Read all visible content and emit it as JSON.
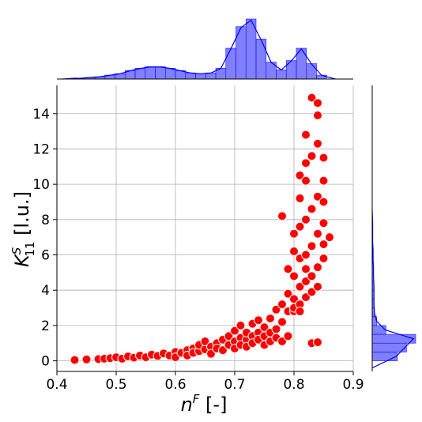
{
  "chart_data": {
    "type": "scatter",
    "title": "",
    "xlabel": "n",
    "xlabel_sup": "F",
    "xlabel_unit": " [-]",
    "ylabel": "K",
    "ylabel_sup": "S",
    "ylabel_sub": "11",
    "ylabel_unit": " [l.u.]",
    "xlim": [
      0.4,
      0.9
    ],
    "ylim": [
      -0.6,
      15.6
    ],
    "xticks": [
      0.4,
      0.5,
      0.6,
      0.7,
      0.8,
      0.9
    ],
    "xtick_labels": [
      "0.4",
      "0.5",
      "0.6",
      "0.7",
      "0.8",
      "0.9"
    ],
    "yticks": [
      0,
      2,
      4,
      6,
      8,
      10,
      12,
      14
    ],
    "ytick_labels": [
      "0",
      "2",
      "4",
      "6",
      "8",
      "10",
      "12",
      "14"
    ],
    "grid": true,
    "point_color": "#ff0000",
    "point_edge": "#ffffff",
    "hist_color": "#0000ff",
    "marginal_x_hist": {
      "bin_edges": [
        0.43,
        0.447,
        0.464,
        0.481,
        0.498,
        0.515,
        0.532,
        0.549,
        0.566,
        0.583,
        0.6,
        0.617,
        0.634,
        0.651,
        0.668,
        0.685,
        0.702,
        0.719,
        0.736,
        0.753,
        0.77,
        0.787,
        0.804,
        0.821,
        0.838,
        0.855
      ],
      "counts": [
        1,
        2,
        3,
        5,
        7,
        11,
        14,
        16,
        16,
        14,
        11,
        8,
        7,
        8,
        14,
        40,
        68,
        78,
        52,
        22,
        12,
        24,
        40,
        20,
        5
      ]
    },
    "marginal_y_hist": {
      "bin_edges": [
        0,
        0.5,
        1,
        1.5,
        2,
        2.5,
        3,
        3.5,
        4,
        4.5,
        5,
        5.5,
        6,
        6.5,
        7,
        7.5,
        8
      ],
      "counts": [
        55,
        75,
        95,
        30,
        10,
        5,
        4,
        4,
        4,
        3,
        3,
        2,
        2,
        1,
        1,
        1
      ]
    },
    "points": [
      [
        0.43,
        0.05
      ],
      [
        0.45,
        0.08
      ],
      [
        0.47,
        0.1
      ],
      [
        0.48,
        0.12
      ],
      [
        0.49,
        0.15
      ],
      [
        0.5,
        0.2
      ],
      [
        0.51,
        0.12
      ],
      [
        0.52,
        0.25
      ],
      [
        0.53,
        0.18
      ],
      [
        0.54,
        0.3
      ],
      [
        0.55,
        0.2
      ],
      [
        0.56,
        0.35
      ],
      [
        0.57,
        0.28
      ],
      [
        0.58,
        0.42
      ],
      [
        0.59,
        0.3
      ],
      [
        0.6,
        0.5
      ],
      [
        0.6,
        0.2
      ],
      [
        0.61,
        0.45
      ],
      [
        0.62,
        0.6
      ],
      [
        0.62,
        0.3
      ],
      [
        0.63,
        0.7
      ],
      [
        0.63,
        0.45
      ],
      [
        0.64,
        0.55
      ],
      [
        0.64,
        0.9
      ],
      [
        0.65,
        0.65
      ],
      [
        0.65,
        1.1
      ],
      [
        0.66,
        0.8
      ],
      [
        0.66,
        0.4
      ],
      [
        0.67,
        1.0
      ],
      [
        0.67,
        0.7
      ],
      [
        0.68,
        1.2
      ],
      [
        0.68,
        0.6
      ],
      [
        0.69,
        0.9
      ],
      [
        0.69,
        1.4
      ],
      [
        0.7,
        1.1
      ],
      [
        0.7,
        0.7
      ],
      [
        0.7,
        1.7
      ],
      [
        0.71,
        1.3
      ],
      [
        0.71,
        0.9
      ],
      [
        0.71,
        2.0
      ],
      [
        0.72,
        1.2
      ],
      [
        0.72,
        1.6
      ],
      [
        0.72,
        0.8
      ],
      [
        0.73,
        1.4
      ],
      [
        0.73,
        2.1
      ],
      [
        0.73,
        1.0
      ],
      [
        0.74,
        1.6
      ],
      [
        0.74,
        1.2
      ],
      [
        0.74,
        2.3
      ],
      [
        0.75,
        1.4
      ],
      [
        0.75,
        1.9
      ],
      [
        0.75,
        0.9
      ],
      [
        0.76,
        1.6
      ],
      [
        0.76,
        2.4
      ],
      [
        0.76,
        1.1
      ],
      [
        0.77,
        1.8
      ],
      [
        0.77,
        2.9
      ],
      [
        0.77,
        1.3
      ],
      [
        0.78,
        2.2
      ],
      [
        0.78,
        3.2
      ],
      [
        0.78,
        8.2
      ],
      [
        0.78,
        1.1
      ],
      [
        0.79,
        2.8
      ],
      [
        0.79,
        5.2
      ],
      [
        0.79,
        3.8
      ],
      [
        0.79,
        1.4
      ],
      [
        0.8,
        3.5
      ],
      [
        0.8,
        4.8
      ],
      [
        0.8,
        6.2
      ],
      [
        0.8,
        2.8
      ],
      [
        0.8,
        7.2
      ],
      [
        0.8,
        3.0
      ],
      [
        0.81,
        4.2
      ],
      [
        0.81,
        5.8
      ],
      [
        0.81,
        7.6
      ],
      [
        0.81,
        9.2
      ],
      [
        0.81,
        3.2
      ],
      [
        0.81,
        2.8
      ],
      [
        0.81,
        10.5
      ],
      [
        0.82,
        4.5
      ],
      [
        0.82,
        6.0
      ],
      [
        0.82,
        8.0
      ],
      [
        0.82,
        10.2
      ],
      [
        0.82,
        12.8
      ],
      [
        0.82,
        11.2
      ],
      [
        0.82,
        3.6
      ],
      [
        0.82,
        5.2
      ],
      [
        0.83,
        4.8
      ],
      [
        0.83,
        6.5
      ],
      [
        0.83,
        8.6
      ],
      [
        0.83,
        11.6
      ],
      [
        0.83,
        14.9
      ],
      [
        0.83,
        3.9
      ],
      [
        0.83,
        1.0
      ],
      [
        0.84,
        5.3
      ],
      [
        0.84,
        7.2
      ],
      [
        0.84,
        9.3
      ],
      [
        0.84,
        12.3
      ],
      [
        0.84,
        14.6
      ],
      [
        0.84,
        13.9
      ],
      [
        0.84,
        4.2
      ],
      [
        0.84,
        1.05
      ],
      [
        0.85,
        5.8
      ],
      [
        0.85,
        7.8
      ],
      [
        0.85,
        10.2
      ],
      [
        0.85,
        11.5
      ],
      [
        0.85,
        9.0
      ],
      [
        0.85,
        6.6
      ],
      [
        0.86,
        7.0
      ]
    ]
  }
}
